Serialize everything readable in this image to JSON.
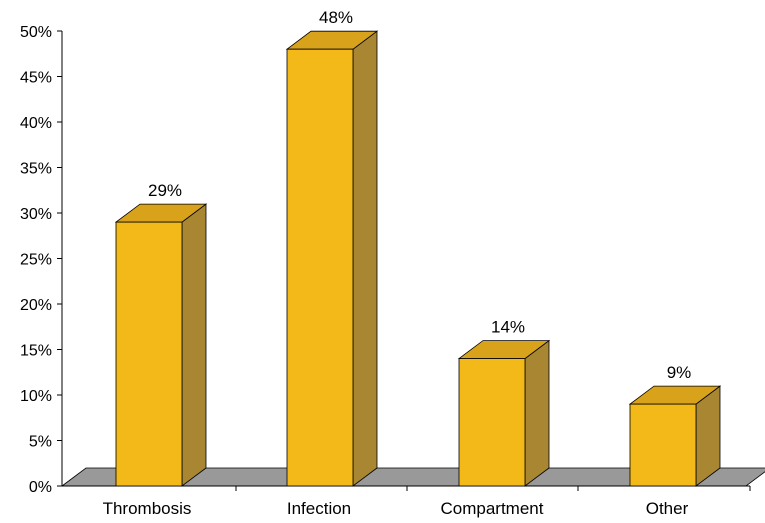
{
  "chart_data": {
    "type": "bar",
    "categories": [
      "Thrombosis",
      "Infection",
      "Compartment",
      "Other"
    ],
    "values": [
      29,
      48,
      14,
      9
    ],
    "value_labels": [
      "29%",
      "48%",
      "14%",
      "9%"
    ],
    "ylim": [
      0,
      50
    ],
    "y_ticks": [
      0,
      5,
      10,
      15,
      20,
      25,
      30,
      35,
      40,
      45,
      50
    ],
    "y_tick_labels": [
      "0%",
      "5%",
      "10%",
      "15%",
      "20%",
      "25%",
      "30%",
      "35%",
      "40%",
      "45%",
      "50%"
    ],
    "title": "",
    "xlabel": "",
    "ylabel": "",
    "grid": false,
    "legend": "none",
    "style": "3d",
    "colors": {
      "bar_front": "#f2b918",
      "bar_top": "#d8a21a",
      "bar_side": "#a88632",
      "floor": "#999999",
      "axis": "#000000"
    }
  }
}
